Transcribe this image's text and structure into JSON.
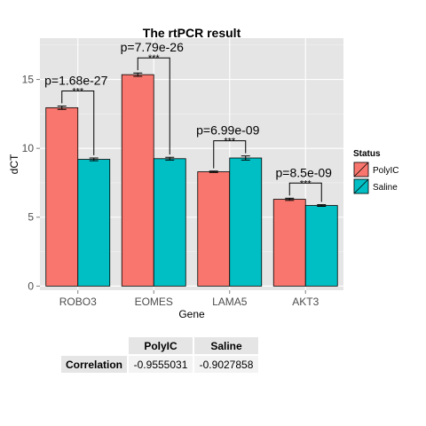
{
  "chart_data": {
    "type": "bar",
    "title": "The rtPCR result",
    "xlabel": "Gene",
    "ylabel": "dCT",
    "ylim": [
      -0.3,
      18
    ],
    "yticks": [
      0,
      5,
      10,
      15
    ],
    "grid": true,
    "categories": [
      "ROBO3",
      "EOMES",
      "LAMA5",
      "AKT3"
    ],
    "series": [
      {
        "name": "PolyIC",
        "color": "#f8766d",
        "values": [
          12.95,
          15.35,
          8.3,
          6.3
        ],
        "errors": [
          0.12,
          0.12,
          0.05,
          0.08
        ]
      },
      {
        "name": "Saline",
        "color": "#00bfc4",
        "values": [
          9.2,
          9.25,
          9.3,
          5.85
        ],
        "errors": [
          0.1,
          0.1,
          0.15,
          0.06
        ]
      }
    ],
    "annotations": [
      {
        "category": "ROBO3",
        "pvalue": "p=1.68e-27",
        "stars": "***"
      },
      {
        "category": "EOMES",
        "pvalue": "p=7.79e-26",
        "stars": "***"
      },
      {
        "category": "LAMA5",
        "pvalue": "p=6.99e-09",
        "stars": "***"
      },
      {
        "category": "AKT3",
        "pvalue": "p=8.5e-09",
        "stars": "***"
      }
    ],
    "legend": {
      "title": "Status",
      "position": "right"
    }
  },
  "table": {
    "columns": [
      "PolyIC",
      "Saline"
    ],
    "rows": [
      {
        "label": "Correlation",
        "values": [
          "-0.9555031",
          "-0.9027858"
        ]
      }
    ]
  }
}
